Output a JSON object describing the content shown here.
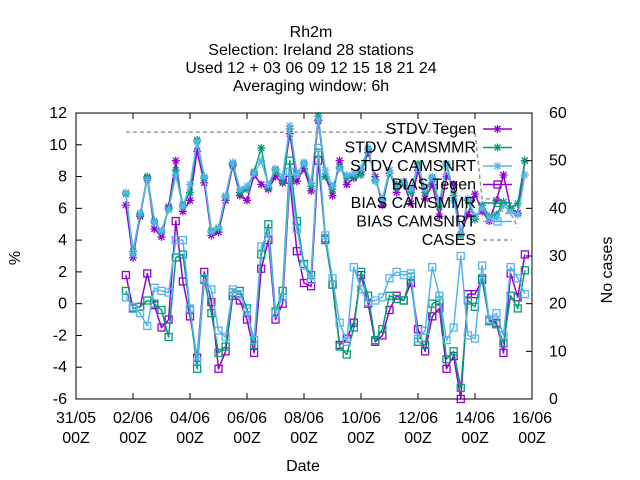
{
  "chart_data": {
    "type": "line",
    "title_lines": [
      "Rh2m",
      "Selection: Ireland      28 stations",
      "Used  12 + 03 06 09 12 15 18 21 24",
      "Averaging window:  6h"
    ],
    "xlabel": "Date",
    "ylabel": "%",
    "y2label": "No cases",
    "xlim": [
      0,
      16
    ],
    "ylim": [
      -6,
      12
    ],
    "y2lim": [
      0,
      60
    ],
    "x_unit": "days since 31/05 00Z",
    "x_ticks": [
      {
        "x": 0,
        "line1": "31/05",
        "line2": "00Z"
      },
      {
        "x": 2,
        "line1": "02/06",
        "line2": "00Z"
      },
      {
        "x": 4,
        "line1": "04/06",
        "line2": "00Z"
      },
      {
        "x": 6,
        "line1": "06/06",
        "line2": "00Z"
      },
      {
        "x": 8,
        "line1": "08/06",
        "line2": "00Z"
      },
      {
        "x": 10,
        "line1": "10/06",
        "line2": "00Z"
      },
      {
        "x": 12,
        "line1": "12/06",
        "line2": "00Z"
      },
      {
        "x": 14,
        "line1": "14/06",
        "line2": "00Z"
      },
      {
        "x": 16,
        "line1": "16/06",
        "line2": "00Z"
      }
    ],
    "y_ticks": [
      -6,
      -4,
      -2,
      0,
      2,
      4,
      6,
      8,
      10,
      12
    ],
    "y2_ticks": [
      0,
      10,
      20,
      30,
      40,
      50,
      60
    ],
    "grid": false,
    "legend_position": "top-right",
    "x": [
      1.75,
      2.0,
      2.25,
      2.5,
      2.75,
      3.0,
      3.25,
      3.5,
      3.75,
      4.0,
      4.25,
      4.5,
      4.75,
      5.0,
      5.25,
      5.5,
      5.75,
      6.0,
      6.25,
      6.5,
      6.75,
      7.0,
      7.25,
      7.5,
      7.75,
      8.0,
      8.25,
      8.5,
      8.75,
      9.0,
      9.25,
      9.5,
      9.75,
      10.0,
      10.25,
      10.5,
      10.75,
      11.0,
      11.25,
      11.5,
      11.75,
      12.0,
      12.25,
      12.5,
      12.75,
      13.0,
      13.25,
      13.5,
      13.75,
      14.0,
      14.25,
      14.5,
      14.75,
      15.0,
      15.25,
      15.5,
      15.75
    ],
    "series": [
      {
        "name": "STDV Tegen",
        "color": "#9400d3",
        "marker": "star",
        "axis": "y",
        "values": [
          6.2,
          2.9,
          5.5,
          7.9,
          4.7,
          4.2,
          6.1,
          9.0,
          5.8,
          6.5,
          9.6,
          7.6,
          4.3,
          4.5,
          6.5,
          8.7,
          6.8,
          6.5,
          8.1,
          7.5,
          7.2,
          8.0,
          7.6,
          10.7,
          7.7,
          8.5,
          7.1,
          11.5,
          8.0,
          6.8,
          9.0,
          7.5,
          7.9,
          8.3,
          9.5,
          8.0,
          6.2,
          8.4,
          7.0,
          7.6,
          6.3,
          8.4,
          6.6,
          7.5,
          5.5,
          8.0,
          7.5,
          4.4,
          5.6,
          6.9,
          5.8,
          5.2,
          6.5,
          8.1,
          6.0,
          5.7,
          9.0
        ]
      },
      {
        "name": "STDV CAMSMMR",
        "color": "#009e73",
        "marker": "star",
        "axis": "y",
        "values": [
          6.9,
          3.3,
          5.6,
          8.0,
          5.2,
          4.5,
          6.0,
          8.4,
          6.2,
          7.0,
          10.3,
          7.9,
          4.6,
          4.7,
          6.7,
          8.8,
          7.0,
          7.2,
          8.3,
          9.8,
          7.3,
          8.4,
          7.7,
          11.0,
          8.2,
          8.8,
          7.4,
          11.8,
          8.0,
          7.2,
          8.6,
          7.9,
          8.0,
          8.1,
          9.7,
          7.8,
          6.5,
          8.2,
          7.5,
          7.5,
          7.0,
          8.8,
          7.0,
          7.9,
          6.1,
          8.8,
          6.8,
          4.3,
          6.5,
          5.3,
          6.2,
          5.5,
          5.6,
          6.4,
          6.0,
          6.3,
          9.0
        ]
      },
      {
        "name": "STDV CAMSNRT",
        "color": "#56b4e9",
        "marker": "star",
        "axis": "y",
        "values": [
          7.0,
          3.1,
          5.7,
          7.8,
          5.1,
          4.6,
          5.9,
          8.1,
          6.1,
          7.5,
          10.2,
          8.0,
          4.5,
          4.8,
          6.8,
          8.9,
          7.2,
          7.4,
          8.2,
          9.0,
          7.5,
          8.5,
          8.0,
          11.2,
          8.1,
          8.9,
          7.6,
          11.6,
          8.4,
          7.4,
          8.5,
          8.1,
          8.2,
          8.5,
          9.8,
          7.7,
          6.6,
          8.4,
          7.3,
          7.7,
          7.2,
          8.6,
          7.2,
          8.0,
          6.4,
          8.7,
          6.5,
          4.4,
          6.6,
          5.5,
          6.0,
          5.4,
          5.4,
          6.2,
          5.8,
          5.6,
          8.1
        ]
      },
      {
        "name": "BIAS Tegen",
        "color": "#9400d3",
        "marker": "square",
        "axis": "y",
        "values": [
          1.8,
          -0.3,
          -0.2,
          1.9,
          -0.1,
          -1.5,
          -1.0,
          5.2,
          1.4,
          -0.8,
          -3.4,
          2.0,
          0.1,
          -4.1,
          -3.0,
          0.5,
          0.2,
          -1.0,
          -3.1,
          2.2,
          4.0,
          -1.0,
          0.0,
          7.8,
          3.3,
          1.3,
          1.1,
          9.0,
          4.1,
          1.2,
          -2.6,
          -2.2,
          -1.2,
          1.8,
          0.0,
          -2.4,
          -2.0,
          -0.4,
          0.5,
          0.2,
          1.3,
          -1.6,
          -3.0,
          -0.8,
          -0.3,
          -4.1,
          -3.3,
          -6.0,
          0.6,
          0.6,
          1.5,
          -1.0,
          -1.2,
          -3.1,
          1.9,
          0.4,
          3.1
        ]
      },
      {
        "name": "BIAS CAMSMMR",
        "color": "#009e73",
        "marker": "square",
        "axis": "y",
        "values": [
          0.8,
          -0.3,
          -0.2,
          0.2,
          0.0,
          -0.4,
          -2.1,
          2.9,
          3.1,
          -0.4,
          -4.1,
          1.5,
          -0.6,
          -3.1,
          -2.7,
          0.7,
          0.8,
          -0.3,
          -2.6,
          3.1,
          5.0,
          -0.5,
          0.8,
          9.0,
          5.2,
          2.5,
          1.8,
          9.5,
          4.0,
          1.2,
          -2.7,
          -3.2,
          -1.5,
          2.0,
          0.5,
          -2.3,
          -1.6,
          0.5,
          0.3,
          0.2,
          1.7,
          -2.4,
          -2.6,
          0.0,
          0.2,
          -3.5,
          -3.0,
          -5.3,
          0.2,
          -0.2,
          1.6,
          -1.1,
          -1.3,
          -2.5,
          0.5,
          -0.3,
          2.1
        ]
      },
      {
        "name": "BIAS CAMSNRT",
        "color": "#56b4e9",
        "marker": "square",
        "axis": "y",
        "values": [
          0.4,
          -0.2,
          -0.6,
          -1.4,
          1.0,
          0.8,
          0.7,
          4.0,
          4.0,
          -0.3,
          -3.6,
          1.6,
          0.9,
          -1.7,
          -2.1,
          0.9,
          0.6,
          -0.5,
          -2.3,
          3.6,
          4.5,
          -0.6,
          0.4,
          8.3,
          4.7,
          2.4,
          1.5,
          9.8,
          4.3,
          1.6,
          -1.2,
          -2.4,
          2.3,
          0.9,
          0.1,
          0.2,
          0.4,
          1.6,
          2.0,
          1.8,
          1.9,
          -2.2,
          -1.7,
          2.3,
          0.5,
          -2.3,
          -1.5,
          3.0,
          -2.0,
          -2.2,
          2.4,
          -1.0,
          -0.6,
          -2.0,
          2.3,
          1.6,
          0.6
        ]
      },
      {
        "name": "CASES",
        "color": "#999999",
        "marker": "none",
        "axis": "y2",
        "dashed": true,
        "x": [
          1.75,
          2.0,
          2.5,
          3.0,
          3.5,
          4.0,
          4.5,
          5.0,
          5.5,
          6.0,
          6.5,
          7.0,
          7.5,
          8.0,
          8.5,
          9.0,
          9.5,
          10.0,
          10.5,
          11.0,
          11.5,
          12.0,
          12.5,
          13.0,
          13.5,
          14.0,
          14.25,
          14.5,
          14.75,
          15.0,
          15.25,
          15.5
        ],
        "values": [
          56,
          56,
          56,
          56,
          56,
          56,
          56,
          56,
          56,
          56,
          56,
          56,
          56,
          56,
          56,
          56,
          56,
          56,
          56,
          56,
          56,
          56,
          56,
          56,
          56,
          56,
          42,
          42,
          42,
          39,
          39,
          36
        ]
      }
    ]
  }
}
